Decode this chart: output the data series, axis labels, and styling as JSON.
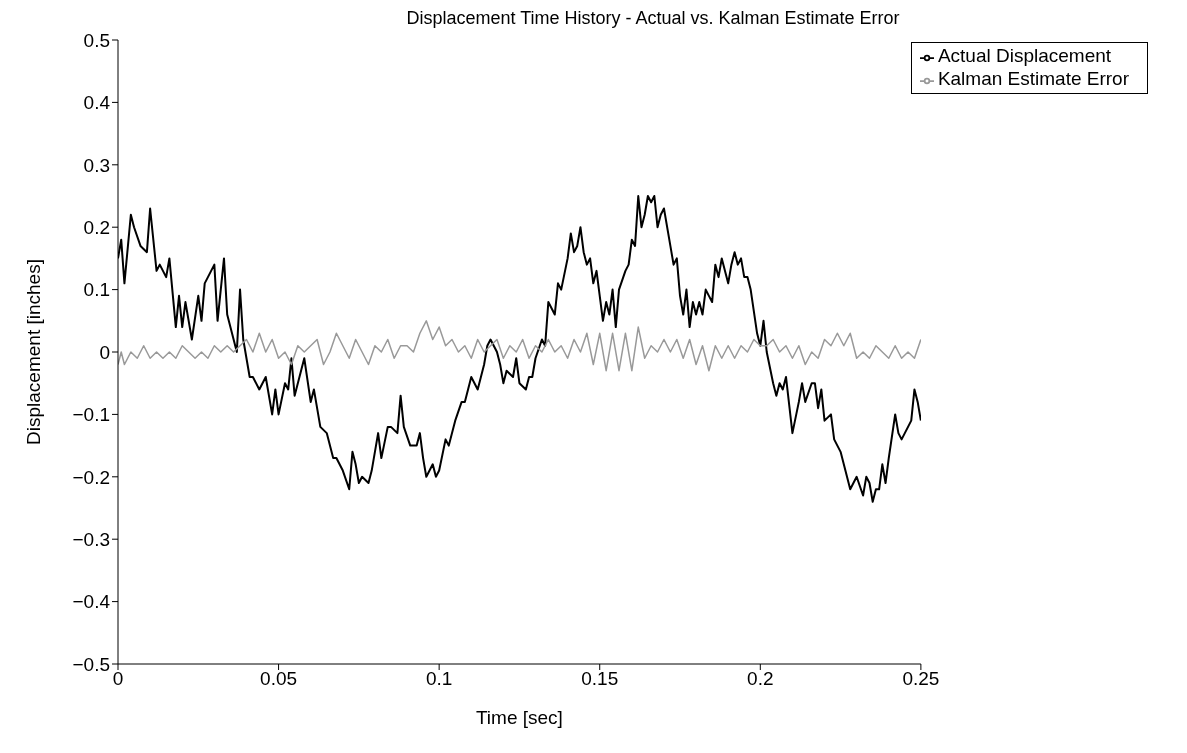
{
  "chart_data": {
    "type": "line",
    "title": "Displacement Time History - Actual vs. Kalman Estimate Error",
    "xlabel": "Time [sec]",
    "ylabel": "Displacement [inches]",
    "xlim": [
      0,
      0.25
    ],
    "xticks": [
      0,
      0.05,
      0.1,
      0.15,
      0.2,
      0.25
    ],
    "ylim": [
      -0.5,
      0.5
    ],
    "yticks": [
      -0.5,
      -0.4,
      -0.3,
      -0.2,
      -0.1,
      0,
      0.1,
      0.2,
      0.3,
      0.4,
      0.5
    ],
    "grid": false,
    "legend": "top right",
    "marker": "none",
    "line_style": "solid",
    "series": [
      {
        "name": "Actual Displacement",
        "color": "#000000",
        "x": [
          0,
          0.001,
          0.002,
          0.004,
          0.005,
          0.007,
          0.009,
          0.01,
          0.012,
          0.013,
          0.015,
          0.016,
          0.018,
          0.019,
          0.02,
          0.021,
          0.023,
          0.025,
          0.026,
          0.027,
          0.029,
          0.03,
          0.031,
          0.033,
          0.034,
          0.036,
          0.037,
          0.038,
          0.039,
          0.041,
          0.042,
          0.044,
          0.046,
          0.048,
          0.049,
          0.05,
          0.052,
          0.053,
          0.054,
          0.055,
          0.057,
          0.058,
          0.06,
          0.061,
          0.063,
          0.065,
          0.067,
          0.068,
          0.07,
          0.072,
          0.073,
          0.074,
          0.075,
          0.076,
          0.078,
          0.079,
          0.081,
          0.082,
          0.084,
          0.085,
          0.087,
          0.088,
          0.089,
          0.091,
          0.093,
          0.094,
          0.095,
          0.096,
          0.098,
          0.099,
          0.1,
          0.102,
          0.103,
          0.105,
          0.107,
          0.108,
          0.109,
          0.11,
          0.112,
          0.114,
          0.115,
          0.116,
          0.118,
          0.119,
          0.12,
          0.121,
          0.123,
          0.124,
          0.125,
          0.127,
          0.128,
          0.129,
          0.13,
          0.132,
          0.133,
          0.134,
          0.135,
          0.136,
          0.137,
          0.138,
          0.14,
          0.141,
          0.142,
          0.143,
          0.144,
          0.145,
          0.146,
          0.147,
          0.148,
          0.149,
          0.151,
          0.152,
          0.153,
          0.154,
          0.155,
          0.156,
          0.158,
          0.159,
          0.16,
          0.161,
          0.162,
          0.163,
          0.164,
          0.165,
          0.166,
          0.167,
          0.168,
          0.169,
          0.17,
          0.172,
          0.173,
          0.174,
          0.175,
          0.176,
          0.177,
          0.178,
          0.179,
          0.18,
          0.181,
          0.182,
          0.183,
          0.184,
          0.185,
          0.186,
          0.187,
          0.188,
          0.19,
          0.191,
          0.192,
          0.193,
          0.194,
          0.195,
          0.196,
          0.197,
          0.199,
          0.2,
          0.201,
          0.202,
          0.204,
          0.205,
          0.206,
          0.207,
          0.208,
          0.21,
          0.212,
          0.213,
          0.214,
          0.216,
          0.217,
          0.218,
          0.219,
          0.22,
          0.222,
          0.223,
          0.225,
          0.227,
          0.228,
          0.229,
          0.23,
          0.232,
          0.233,
          0.234,
          0.235,
          0.236,
          0.237,
          0.238,
          0.239,
          0.24,
          0.242,
          0.243,
          0.244,
          0.245,
          0.247,
          0.248,
          0.249,
          0.25
        ],
        "values": [
          0.15,
          0.18,
          0.11,
          0.22,
          0.2,
          0.17,
          0.16,
          0.23,
          0.13,
          0.14,
          0.12,
          0.15,
          0.04,
          0.09,
          0.04,
          0.08,
          0.02,
          0.09,
          0.05,
          0.11,
          0.13,
          0.14,
          0.05,
          0.15,
          0.06,
          0.02,
          0.0,
          0.1,
          0.02,
          -0.04,
          -0.04,
          -0.06,
          -0.04,
          -0.1,
          -0.06,
          -0.1,
          -0.05,
          -0.06,
          -0.01,
          -0.07,
          -0.03,
          -0.01,
          -0.08,
          -0.06,
          -0.12,
          -0.13,
          -0.17,
          -0.17,
          -0.19,
          -0.22,
          -0.16,
          -0.18,
          -0.21,
          -0.2,
          -0.21,
          -0.19,
          -0.13,
          -0.17,
          -0.12,
          -0.12,
          -0.13,
          -0.07,
          -0.12,
          -0.15,
          -0.15,
          -0.13,
          -0.17,
          -0.2,
          -0.18,
          -0.2,
          -0.19,
          -0.14,
          -0.15,
          -0.11,
          -0.08,
          -0.08,
          -0.06,
          -0.04,
          -0.06,
          -0.02,
          0.01,
          0.02,
          0.0,
          -0.02,
          -0.05,
          -0.03,
          -0.04,
          -0.01,
          -0.05,
          -0.06,
          -0.04,
          -0.04,
          -0.01,
          0.02,
          0.01,
          0.08,
          0.07,
          0.06,
          0.11,
          0.1,
          0.15,
          0.19,
          0.16,
          0.17,
          0.2,
          0.16,
          0.14,
          0.15,
          0.11,
          0.13,
          0.05,
          0.08,
          0.06,
          0.1,
          0.04,
          0.1,
          0.13,
          0.14,
          0.18,
          0.17,
          0.25,
          0.2,
          0.22,
          0.25,
          0.24,
          0.25,
          0.2,
          0.22,
          0.23,
          0.17,
          0.14,
          0.15,
          0.09,
          0.06,
          0.1,
          0.04,
          0.08,
          0.06,
          0.08,
          0.06,
          0.1,
          0.09,
          0.08,
          0.14,
          0.12,
          0.15,
          0.11,
          0.14,
          0.16,
          0.14,
          0.15,
          0.12,
          0.12,
          0.1,
          0.03,
          0.01,
          0.05,
          0.0,
          -0.05,
          -0.07,
          -0.05,
          -0.06,
          -0.04,
          -0.13,
          -0.08,
          -0.05,
          -0.08,
          -0.05,
          -0.05,
          -0.09,
          -0.06,
          -0.11,
          -0.1,
          -0.14,
          -0.16,
          -0.2,
          -0.22,
          -0.21,
          -0.2,
          -0.23,
          -0.2,
          -0.21,
          -0.24,
          -0.22,
          -0.22,
          -0.18,
          -0.21,
          -0.17,
          -0.1,
          -0.13,
          -0.14,
          -0.13,
          -0.11,
          -0.06,
          -0.08,
          -0.11
        ]
      },
      {
        "name": "Kalman Estimate Error",
        "color": "#999999",
        "x": [
          0,
          0.001,
          0.002,
          0.004,
          0.006,
          0.008,
          0.01,
          0.012,
          0.014,
          0.016,
          0.018,
          0.02,
          0.022,
          0.024,
          0.026,
          0.028,
          0.03,
          0.032,
          0.034,
          0.036,
          0.038,
          0.04,
          0.042,
          0.044,
          0.046,
          0.048,
          0.05,
          0.052,
          0.054,
          0.056,
          0.058,
          0.06,
          0.062,
          0.064,
          0.066,
          0.068,
          0.07,
          0.072,
          0.074,
          0.076,
          0.078,
          0.08,
          0.082,
          0.084,
          0.086,
          0.088,
          0.09,
          0.092,
          0.094,
          0.096,
          0.098,
          0.1,
          0.102,
          0.104,
          0.106,
          0.108,
          0.11,
          0.112,
          0.114,
          0.116,
          0.118,
          0.12,
          0.122,
          0.124,
          0.126,
          0.128,
          0.13,
          0.132,
          0.134,
          0.136,
          0.138,
          0.14,
          0.142,
          0.144,
          0.146,
          0.148,
          0.15,
          0.152,
          0.154,
          0.156,
          0.158,
          0.16,
          0.162,
          0.164,
          0.166,
          0.168,
          0.17,
          0.172,
          0.174,
          0.176,
          0.178,
          0.18,
          0.182,
          0.184,
          0.186,
          0.188,
          0.19,
          0.192,
          0.194,
          0.196,
          0.198,
          0.2,
          0.202,
          0.204,
          0.206,
          0.208,
          0.21,
          0.212,
          0.214,
          0.216,
          0.218,
          0.22,
          0.222,
          0.224,
          0.226,
          0.228,
          0.23,
          0.232,
          0.234,
          0.236,
          0.238,
          0.24,
          0.242,
          0.244,
          0.246,
          0.248,
          0.25
        ],
        "values": [
          -0.02,
          0.0,
          -0.02,
          0.0,
          -0.01,
          0.01,
          -0.01,
          0.0,
          -0.01,
          0.0,
          -0.01,
          0.01,
          0.0,
          -0.01,
          0.0,
          -0.01,
          0.01,
          0.0,
          0.01,
          0.0,
          0.01,
          0.02,
          0.0,
          0.03,
          0.0,
          0.02,
          -0.01,
          0.0,
          -0.02,
          0.01,
          0.0,
          0.01,
          0.02,
          -0.02,
          0.0,
          0.03,
          0.01,
          -0.01,
          0.02,
          0.0,
          -0.02,
          0.01,
          0.0,
          0.02,
          -0.01,
          0.01,
          0.01,
          0.0,
          0.03,
          0.05,
          0.02,
          0.04,
          0.01,
          0.02,
          0.0,
          0.01,
          -0.01,
          0.02,
          0.0,
          0.01,
          0.02,
          -0.01,
          0.01,
          0.0,
          0.02,
          -0.01,
          0.01,
          0.0,
          0.02,
          0.0,
          0.01,
          -0.01,
          0.02,
          0.0,
          0.03,
          -0.02,
          0.03,
          -0.03,
          0.03,
          -0.03,
          0.03,
          -0.03,
          0.04,
          -0.01,
          0.01,
          0.0,
          0.02,
          0.0,
          0.02,
          -0.01,
          0.02,
          -0.02,
          0.01,
          -0.03,
          0.01,
          -0.01,
          0.01,
          -0.01,
          0.01,
          0.0,
          0.02,
          0.01,
          0.01,
          0.02,
          0.0,
          0.01,
          -0.01,
          0.01,
          -0.02,
          0.0,
          -0.01,
          0.02,
          0.01,
          0.03,
          0.01,
          0.03,
          -0.01,
          0.0,
          -0.01,
          0.01,
          0.0,
          -0.01,
          0.01,
          -0.01,
          0.0,
          -0.01,
          0.02
        ]
      }
    ]
  }
}
